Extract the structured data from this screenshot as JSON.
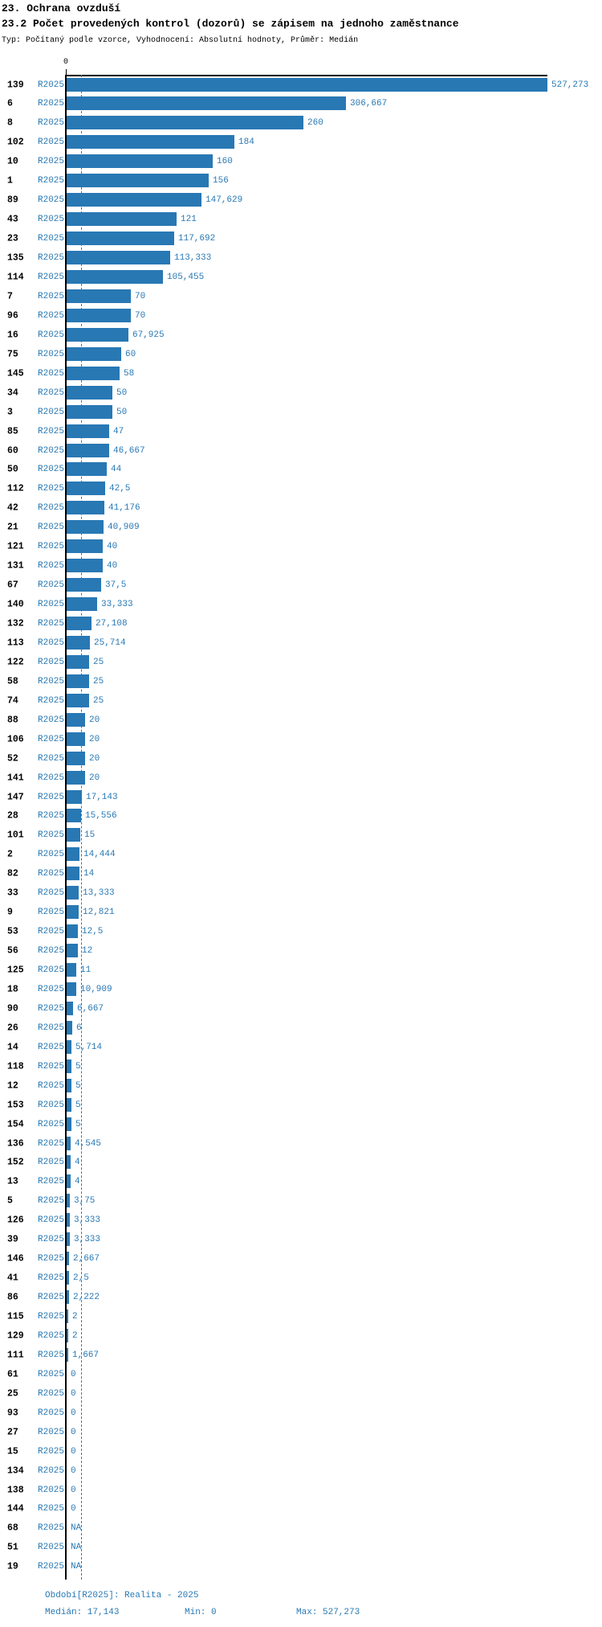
{
  "header": {
    "title1": "23. Ochrana ovzduší",
    "title2": "23.2 Počet provedených kontrol (dozorů) se zápisem na jednoho zaměstnance",
    "subtitle": "Typ: Počítaný podle vzorce, Vyhodnocení: Absolutní hodnoty, Průměr: Medián"
  },
  "chart_data": {
    "type": "bar",
    "orientation": "horizontal",
    "title": "23.2 Počet provedených kontrol (dozorů) se zápisem na jednoho zaměstnance",
    "series_name": "R2025",
    "axis_zero_label": "0",
    "xlim": [
      0,
      527.273
    ],
    "median_reference": 17.143,
    "bar_color": "#2878B4",
    "text_blue": "#2878B4",
    "rows": [
      {
        "id": "139",
        "series": "R2025",
        "value": 527.273,
        "display": "527,273"
      },
      {
        "id": "6",
        "series": "R2025",
        "value": 306.667,
        "display": "306,667"
      },
      {
        "id": "8",
        "series": "R2025",
        "value": 260,
        "display": "260"
      },
      {
        "id": "102",
        "series": "R2025",
        "value": 184,
        "display": "184"
      },
      {
        "id": "10",
        "series": "R2025",
        "value": 160,
        "display": "160"
      },
      {
        "id": "1",
        "series": "R2025",
        "value": 156,
        "display": "156"
      },
      {
        "id": "89",
        "series": "R2025",
        "value": 147.629,
        "display": "147,629"
      },
      {
        "id": "43",
        "series": "R2025",
        "value": 121,
        "display": "121"
      },
      {
        "id": "23",
        "series": "R2025",
        "value": 117.692,
        "display": "117,692"
      },
      {
        "id": "135",
        "series": "R2025",
        "value": 113.333,
        "display": "113,333"
      },
      {
        "id": "114",
        "series": "R2025",
        "value": 105.455,
        "display": "105,455"
      },
      {
        "id": "7",
        "series": "R2025",
        "value": 70,
        "display": "70"
      },
      {
        "id": "96",
        "series": "R2025",
        "value": 70,
        "display": "70"
      },
      {
        "id": "16",
        "series": "R2025",
        "value": 67.925,
        "display": "67,925"
      },
      {
        "id": "75",
        "series": "R2025",
        "value": 60,
        "display": "60"
      },
      {
        "id": "145",
        "series": "R2025",
        "value": 58,
        "display": "58"
      },
      {
        "id": "34",
        "series": "R2025",
        "value": 50,
        "display": "50"
      },
      {
        "id": "3",
        "series": "R2025",
        "value": 50,
        "display": "50"
      },
      {
        "id": "85",
        "series": "R2025",
        "value": 47,
        "display": "47"
      },
      {
        "id": "60",
        "series": "R2025",
        "value": 46.667,
        "display": "46,667"
      },
      {
        "id": "50",
        "series": "R2025",
        "value": 44,
        "display": "44"
      },
      {
        "id": "112",
        "series": "R2025",
        "value": 42.5,
        "display": "42,5"
      },
      {
        "id": "42",
        "series": "R2025",
        "value": 41.176,
        "display": "41,176"
      },
      {
        "id": "21",
        "series": "R2025",
        "value": 40.909,
        "display": "40,909"
      },
      {
        "id": "121",
        "series": "R2025",
        "value": 40,
        "display": "40"
      },
      {
        "id": "131",
        "series": "R2025",
        "value": 40,
        "display": "40"
      },
      {
        "id": "67",
        "series": "R2025",
        "value": 37.5,
        "display": "37,5"
      },
      {
        "id": "140",
        "series": "R2025",
        "value": 33.333,
        "display": "33,333"
      },
      {
        "id": "132",
        "series": "R2025",
        "value": 27.108,
        "display": "27,108"
      },
      {
        "id": "113",
        "series": "R2025",
        "value": 25.714,
        "display": "25,714"
      },
      {
        "id": "122",
        "series": "R2025",
        "value": 25,
        "display": "25"
      },
      {
        "id": "58",
        "series": "R2025",
        "value": 25,
        "display": "25"
      },
      {
        "id": "74",
        "series": "R2025",
        "value": 25,
        "display": "25"
      },
      {
        "id": "88",
        "series": "R2025",
        "value": 20,
        "display": "20"
      },
      {
        "id": "106",
        "series": "R2025",
        "value": 20,
        "display": "20"
      },
      {
        "id": "52",
        "series": "R2025",
        "value": 20,
        "display": "20"
      },
      {
        "id": "141",
        "series": "R2025",
        "value": 20,
        "display": "20"
      },
      {
        "id": "147",
        "series": "R2025",
        "value": 17.143,
        "display": "17,143"
      },
      {
        "id": "28",
        "series": "R2025",
        "value": 15.556,
        "display": "15,556"
      },
      {
        "id": "101",
        "series": "R2025",
        "value": 15,
        "display": "15"
      },
      {
        "id": "2",
        "series": "R2025",
        "value": 14.444,
        "display": "14,444"
      },
      {
        "id": "82",
        "series": "R2025",
        "value": 14,
        "display": "14"
      },
      {
        "id": "33",
        "series": "R2025",
        "value": 13.333,
        "display": "13,333"
      },
      {
        "id": "9",
        "series": "R2025",
        "value": 12.821,
        "display": "12,821"
      },
      {
        "id": "53",
        "series": "R2025",
        "value": 12.5,
        "display": "12,5"
      },
      {
        "id": "56",
        "series": "R2025",
        "value": 12,
        "display": "12"
      },
      {
        "id": "125",
        "series": "R2025",
        "value": 11,
        "display": "11"
      },
      {
        "id": "18",
        "series": "R2025",
        "value": 10.909,
        "display": "10,909"
      },
      {
        "id": "90",
        "series": "R2025",
        "value": 6.667,
        "display": "6,667"
      },
      {
        "id": "26",
        "series": "R2025",
        "value": 6,
        "display": "6"
      },
      {
        "id": "14",
        "series": "R2025",
        "value": 5.714,
        "display": "5,714"
      },
      {
        "id": "118",
        "series": "R2025",
        "value": 5,
        "display": "5"
      },
      {
        "id": "12",
        "series": "R2025",
        "value": 5,
        "display": "5"
      },
      {
        "id": "153",
        "series": "R2025",
        "value": 5,
        "display": "5"
      },
      {
        "id": "154",
        "series": "R2025",
        "value": 5,
        "display": "5"
      },
      {
        "id": "136",
        "series": "R2025",
        "value": 4.545,
        "display": "4,545"
      },
      {
        "id": "152",
        "series": "R2025",
        "value": 4,
        "display": "4"
      },
      {
        "id": "13",
        "series": "R2025",
        "value": 4,
        "display": "4"
      },
      {
        "id": "5",
        "series": "R2025",
        "value": 3.75,
        "display": "3,75"
      },
      {
        "id": "126",
        "series": "R2025",
        "value": 3.333,
        "display": "3,333"
      },
      {
        "id": "39",
        "series": "R2025",
        "value": 3.333,
        "display": "3,333"
      },
      {
        "id": "146",
        "series": "R2025",
        "value": 2.667,
        "display": "2,667"
      },
      {
        "id": "41",
        "series": "R2025",
        "value": 2.5,
        "display": "2,5"
      },
      {
        "id": "86",
        "series": "R2025",
        "value": 2.222,
        "display": "2,222"
      },
      {
        "id": "115",
        "series": "R2025",
        "value": 2,
        "display": "2"
      },
      {
        "id": "129",
        "series": "R2025",
        "value": 2,
        "display": "2"
      },
      {
        "id": "111",
        "series": "R2025",
        "value": 1.667,
        "display": "1,667"
      },
      {
        "id": "61",
        "series": "R2025",
        "value": 0,
        "display": "0"
      },
      {
        "id": "25",
        "series": "R2025",
        "value": 0,
        "display": "0"
      },
      {
        "id": "93",
        "series": "R2025",
        "value": 0,
        "display": "0"
      },
      {
        "id": "27",
        "series": "R2025",
        "value": 0,
        "display": "0"
      },
      {
        "id": "15",
        "series": "R2025",
        "value": 0,
        "display": "0"
      },
      {
        "id": "134",
        "series": "R2025",
        "value": 0,
        "display": "0"
      },
      {
        "id": "138",
        "series": "R2025",
        "value": 0,
        "display": "0"
      },
      {
        "id": "144",
        "series": "R2025",
        "value": 0,
        "display": "0"
      },
      {
        "id": "68",
        "series": "R2025",
        "value": null,
        "display": "NA"
      },
      {
        "id": "51",
        "series": "R2025",
        "value": null,
        "display": "NA"
      },
      {
        "id": "19",
        "series": "R2025",
        "value": null,
        "display": "NA"
      }
    ]
  },
  "footer": {
    "period": "Období[R2025]: Realita - 2025",
    "median": "Medián: 17,143",
    "min": "Min: 0",
    "max": "Max: 527,273"
  }
}
